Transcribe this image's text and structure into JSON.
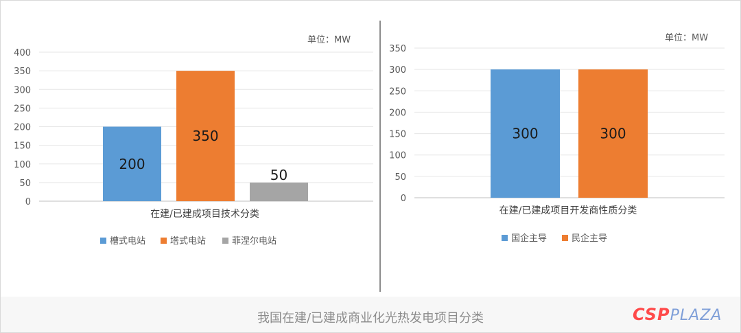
{
  "chart_data": [
    {
      "type": "bar",
      "unit_label": "单位：MW",
      "xlabel": "在建/已建成项目技术分类",
      "categories": [
        "在建/已建成项目技术分类"
      ],
      "ylim": [
        0,
        400
      ],
      "yticks": [
        0,
        50,
        100,
        150,
        200,
        250,
        300,
        350,
        400
      ],
      "grid": true,
      "legend_position": "bottom",
      "series": [
        {
          "name": "槽式电站",
          "values": [
            200
          ],
          "color": "#5b9bd5",
          "label": "200"
        },
        {
          "name": "塔式电站",
          "values": [
            350
          ],
          "color": "#ed7d31",
          "label": "350"
        },
        {
          "name": "菲涅尔电站",
          "values": [
            50
          ],
          "color": "#a5a5a5",
          "label": "50"
        }
      ]
    },
    {
      "type": "bar",
      "unit_label": "单位：MW",
      "xlabel": "在建/已建成项目开发商性质分类",
      "categories": [
        "在建/已建成项目开发商性质分类"
      ],
      "ylim": [
        0,
        350
      ],
      "yticks": [
        0,
        50,
        100,
        150,
        200,
        250,
        300,
        350
      ],
      "grid": true,
      "legend_position": "bottom",
      "series": [
        {
          "name": "国企主导",
          "values": [
            300
          ],
          "color": "#5b9bd5",
          "label": "300"
        },
        {
          "name": "民企主导",
          "values": [
            300
          ],
          "color": "#ed7d31",
          "label": "300"
        }
      ]
    }
  ],
  "caption": "我国在建/已建成商业化光热发电项目分类",
  "logo": {
    "part1": "CSP",
    "part2": "PLAZA",
    "color1": "#ff4a4a",
    "color2": "#7f9fd8"
  }
}
